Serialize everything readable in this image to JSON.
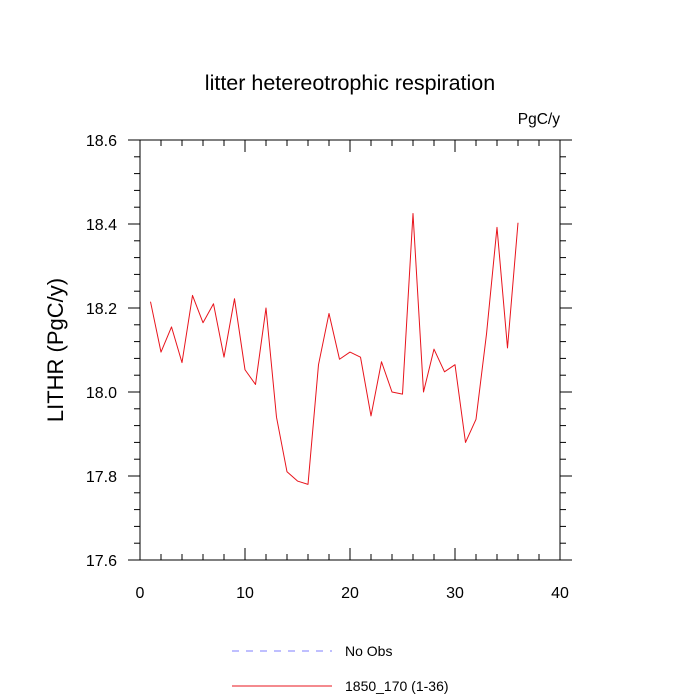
{
  "chart_data": {
    "type": "line",
    "title": "litter hetereotrophic respiration",
    "units_label": "PgC/y",
    "xlabel": "",
    "ylabel": "LITHR  (PgC/y)",
    "xlim": [
      0,
      40
    ],
    "ylim": [
      17.6,
      18.6
    ],
    "x_ticks": [
      0,
      10,
      20,
      30,
      40
    ],
    "y_ticks": [
      17.6,
      17.8,
      18.0,
      18.2,
      18.4,
      18.6
    ],
    "x_tick_labels": [
      "0",
      "10",
      "20",
      "30",
      "40"
    ],
    "y_tick_labels": [
      "17.6",
      "17.8",
      "18.0",
      "18.2",
      "18.4",
      "18.6"
    ],
    "grid": false,
    "series": [
      {
        "name": "1850_170 (1-36)",
        "color": "#e8141c",
        "style": "solid",
        "x": [
          1,
          2,
          3,
          4,
          5,
          6,
          7,
          8,
          9,
          10,
          11,
          12,
          13,
          14,
          15,
          16,
          17,
          18,
          19,
          20,
          21,
          22,
          23,
          24,
          25,
          26,
          27,
          28,
          29,
          30,
          31,
          32,
          33,
          34,
          35,
          36
        ],
        "values": [
          18.215,
          18.095,
          18.155,
          18.07,
          18.23,
          18.165,
          18.21,
          18.083,
          18.222,
          18.053,
          18.018,
          18.2,
          17.94,
          17.81,
          17.788,
          17.78,
          18.065,
          18.187,
          18.078,
          18.095,
          18.083,
          17.943,
          18.072,
          18.0,
          17.995,
          18.425,
          18.0,
          18.102,
          18.048,
          18.065,
          17.88,
          17.935,
          18.138,
          18.392,
          18.105,
          18.403
        ]
      }
    ],
    "legend": {
      "placement": "bottom-center",
      "entries": [
        {
          "label": "No Obs",
          "color": "#7f7fff",
          "style": "dashed"
        },
        {
          "label": "1850_170 (1-36)",
          "color": "#e8141c",
          "style": "solid"
        }
      ]
    }
  }
}
